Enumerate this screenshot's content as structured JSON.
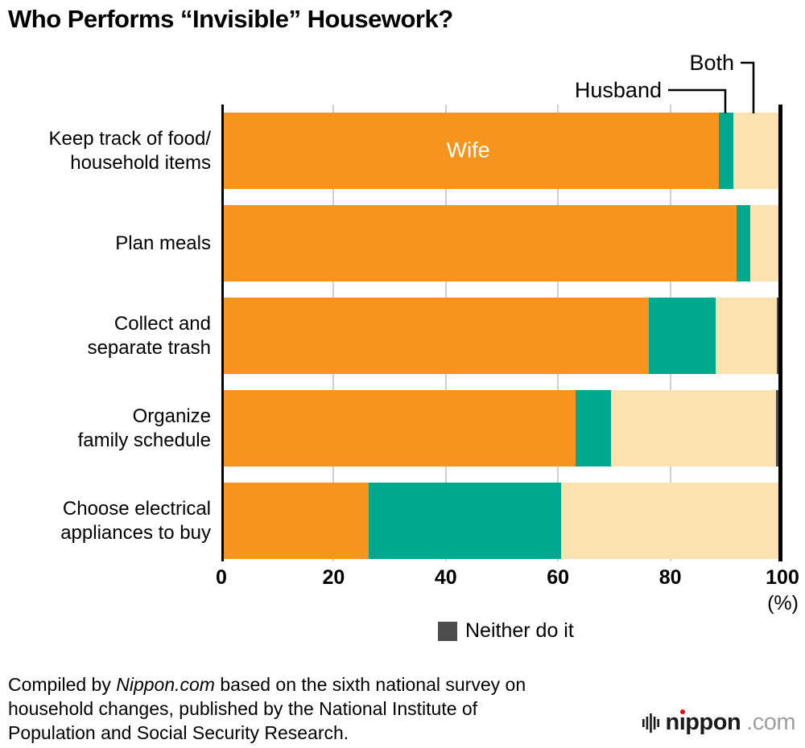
{
  "title": "Who Performs “Invisible” Housework?",
  "chart_data": {
    "type": "bar",
    "orientation": "horizontal",
    "stacked": true,
    "title": "Who Performs “Invisible” Housework?",
    "xlim": [
      0,
      100
    ],
    "x_ticks": [
      "0",
      "20",
      "40",
      "60",
      "80",
      "100"
    ],
    "x_tick_values": [
      0,
      20,
      40,
      60,
      80,
      100
    ],
    "x_axis_unit_label": "(%)",
    "grid": "vertical-light-gray",
    "categories": [
      "Keep track of food/household items",
      "Plan meals",
      "Collect and separate trash",
      "Organize family schedule",
      "Choose electrical appliances to buy"
    ],
    "category_label_lines": [
      [
        "Keep track of food/",
        "household items"
      ],
      [
        "Plan meals"
      ],
      [
        "Collect and",
        "separate trash"
      ],
      [
        "Organize",
        "family schedule"
      ],
      [
        "Choose electrical",
        "appliances to buy"
      ]
    ],
    "series": [
      {
        "name": "Wife",
        "color": "#F7941E",
        "values": [
          88.7,
          91.8,
          76.2,
          63.1,
          26.3
        ]
      },
      {
        "name": "Husband",
        "color": "#00A98E",
        "values": [
          2.5,
          2.4,
          11.9,
          6.4,
          34.2
        ]
      },
      {
        "name": "Both",
        "color": "#FBE2AE",
        "values": [
          8.3,
          5.2,
          10.9,
          29.4,
          39.0
        ]
      },
      {
        "name": "Neither do it",
        "color": "#4D4D4D",
        "values": [
          0.5,
          0.6,
          1.0,
          1.1,
          0.5
        ]
      }
    ],
    "labels": {
      "wife": "Wife",
      "husband": "Husband",
      "both": "Both"
    },
    "legend": [
      {
        "label": "Neither do it",
        "color": "#4D4D4D",
        "position": "bottom-center"
      }
    ]
  },
  "footer": {
    "line1_pre": "Compiled by ",
    "line1_italic": "Nippon.com",
    "line1_post": " based on the sixth national survey on",
    "line2": "household changes, published by the National Institute of",
    "line3": "Population and Social Security Research."
  },
  "logo": {
    "brand_pre": "n",
    "brand_i": "ı",
    "brand_post": "ppon",
    "suffix": ".com"
  }
}
